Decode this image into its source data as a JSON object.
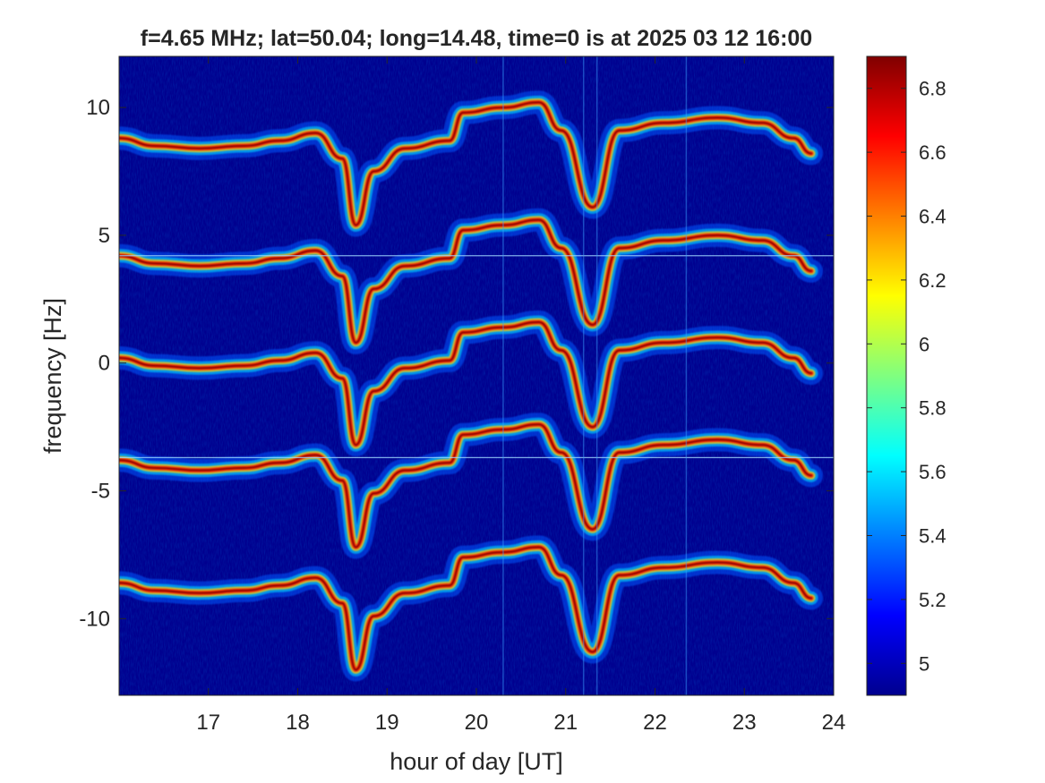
{
  "chart_data": {
    "type": "heatmap",
    "title": "f=4.65 MHz;  lat=50.04; long=14.48, time=0 is at 2025 03 12 16:00",
    "xlabel": "hour of day [UT]",
    "ylabel": "frequency [Hz]",
    "xlim": [
      16,
      24
    ],
    "ylim": [
      -13,
      12
    ],
    "xticks": [
      17,
      18,
      19,
      20,
      21,
      22,
      23,
      24
    ],
    "xtick_labels": [
      "17",
      "18",
      "19",
      "20",
      "21",
      "22",
      "23",
      "24"
    ],
    "yticks": [
      10,
      5,
      0,
      -5,
      -10
    ],
    "ytick_labels": [
      "10",
      "5",
      "0",
      "-5",
      "-10"
    ],
    "colorbar": {
      "colormap": "jet",
      "clim": [
        4.9,
        6.9
      ],
      "ticks": [
        6.8,
        6.6,
        6.4,
        6.2,
        6.0,
        5.8,
        5.6,
        5.4,
        5.2,
        5.0
      ],
      "tick_labels": [
        "6.8",
        "6.6",
        "6.4",
        "6.2",
        "6",
        "5.8",
        "5.6",
        "5.4",
        "5.2",
        "5"
      ]
    },
    "background_color": "#00008f",
    "traces": [
      {
        "offset": 8.8,
        "points": [
          [
            16.0,
            0.0
          ],
          [
            16.4,
            -0.3
          ],
          [
            16.9,
            -0.4
          ],
          [
            17.4,
            -0.3
          ],
          [
            17.8,
            -0.1
          ],
          [
            18.2,
            0.2
          ],
          [
            18.5,
            -0.8
          ],
          [
            18.65,
            -3.4
          ],
          [
            18.85,
            -1.3
          ],
          [
            19.2,
            -0.4
          ],
          [
            19.7,
            -0.1
          ],
          [
            19.85,
            1.0
          ],
          [
            20.3,
            1.2
          ],
          [
            20.7,
            1.4
          ],
          [
            20.95,
            0.3
          ],
          [
            21.3,
            -2.7
          ],
          [
            21.6,
            0.3
          ],
          [
            22.1,
            0.6
          ],
          [
            22.7,
            0.8
          ],
          [
            23.2,
            0.6
          ],
          [
            23.55,
            0.0
          ],
          [
            23.75,
            -0.6
          ]
        ]
      },
      {
        "offset": 4.2,
        "points": [
          [
            16.0,
            0.0
          ],
          [
            16.4,
            -0.3
          ],
          [
            16.9,
            -0.4
          ],
          [
            17.4,
            -0.3
          ],
          [
            17.8,
            -0.1
          ],
          [
            18.2,
            0.2
          ],
          [
            18.5,
            -0.8
          ],
          [
            18.65,
            -3.4
          ],
          [
            18.85,
            -1.3
          ],
          [
            19.2,
            -0.4
          ],
          [
            19.7,
            -0.1
          ],
          [
            19.85,
            1.0
          ],
          [
            20.3,
            1.2
          ],
          [
            20.7,
            1.4
          ],
          [
            20.95,
            0.3
          ],
          [
            21.3,
            -2.7
          ],
          [
            21.6,
            0.3
          ],
          [
            22.1,
            0.6
          ],
          [
            22.7,
            0.8
          ],
          [
            23.2,
            0.6
          ],
          [
            23.55,
            0.0
          ],
          [
            23.75,
            -0.6
          ]
        ]
      },
      {
        "offset": 0.2,
        "points": [
          [
            16.0,
            0.0
          ],
          [
            16.4,
            -0.3
          ],
          [
            16.9,
            -0.4
          ],
          [
            17.4,
            -0.3
          ],
          [
            17.8,
            -0.1
          ],
          [
            18.2,
            0.2
          ],
          [
            18.5,
            -0.8
          ],
          [
            18.65,
            -3.4
          ],
          [
            18.85,
            -1.3
          ],
          [
            19.2,
            -0.4
          ],
          [
            19.7,
            -0.1
          ],
          [
            19.85,
            1.0
          ],
          [
            20.3,
            1.2
          ],
          [
            20.7,
            1.4
          ],
          [
            20.95,
            0.3
          ],
          [
            21.3,
            -2.7
          ],
          [
            21.6,
            0.3
          ],
          [
            22.1,
            0.6
          ],
          [
            22.7,
            0.8
          ],
          [
            23.2,
            0.6
          ],
          [
            23.55,
            0.0
          ],
          [
            23.75,
            -0.6
          ]
        ]
      },
      {
        "offset": -3.8,
        "points": [
          [
            16.0,
            0.0
          ],
          [
            16.4,
            -0.3
          ],
          [
            16.9,
            -0.4
          ],
          [
            17.4,
            -0.3
          ],
          [
            17.8,
            -0.1
          ],
          [
            18.2,
            0.2
          ],
          [
            18.5,
            -0.8
          ],
          [
            18.65,
            -3.4
          ],
          [
            18.85,
            -1.3
          ],
          [
            19.2,
            -0.4
          ],
          [
            19.7,
            -0.1
          ],
          [
            19.85,
            1.0
          ],
          [
            20.3,
            1.2
          ],
          [
            20.7,
            1.4
          ],
          [
            20.95,
            0.3
          ],
          [
            21.3,
            -2.7
          ],
          [
            21.6,
            0.3
          ],
          [
            22.1,
            0.6
          ],
          [
            22.7,
            0.8
          ],
          [
            23.2,
            0.6
          ],
          [
            23.55,
            0.0
          ],
          [
            23.75,
            -0.6
          ]
        ]
      },
      {
        "offset": -8.6,
        "points": [
          [
            16.0,
            0.0
          ],
          [
            16.4,
            -0.3
          ],
          [
            16.9,
            -0.4
          ],
          [
            17.4,
            -0.3
          ],
          [
            17.8,
            -0.1
          ],
          [
            18.2,
            0.2
          ],
          [
            18.5,
            -0.8
          ],
          [
            18.65,
            -3.4
          ],
          [
            18.85,
            -1.3
          ],
          [
            19.2,
            -0.4
          ],
          [
            19.7,
            -0.1
          ],
          [
            19.85,
            1.0
          ],
          [
            20.3,
            1.2
          ],
          [
            20.7,
            1.4
          ],
          [
            20.95,
            0.3
          ],
          [
            21.3,
            -2.7
          ],
          [
            21.6,
            0.3
          ],
          [
            22.1,
            0.6
          ],
          [
            22.7,
            0.8
          ],
          [
            23.2,
            0.6
          ],
          [
            23.55,
            0.0
          ],
          [
            23.75,
            -0.6
          ]
        ]
      }
    ],
    "horizontal_lines": [
      4.2,
      -3.7
    ],
    "vertical_lines": [
      20.3,
      21.2,
      21.35,
      22.35
    ]
  }
}
